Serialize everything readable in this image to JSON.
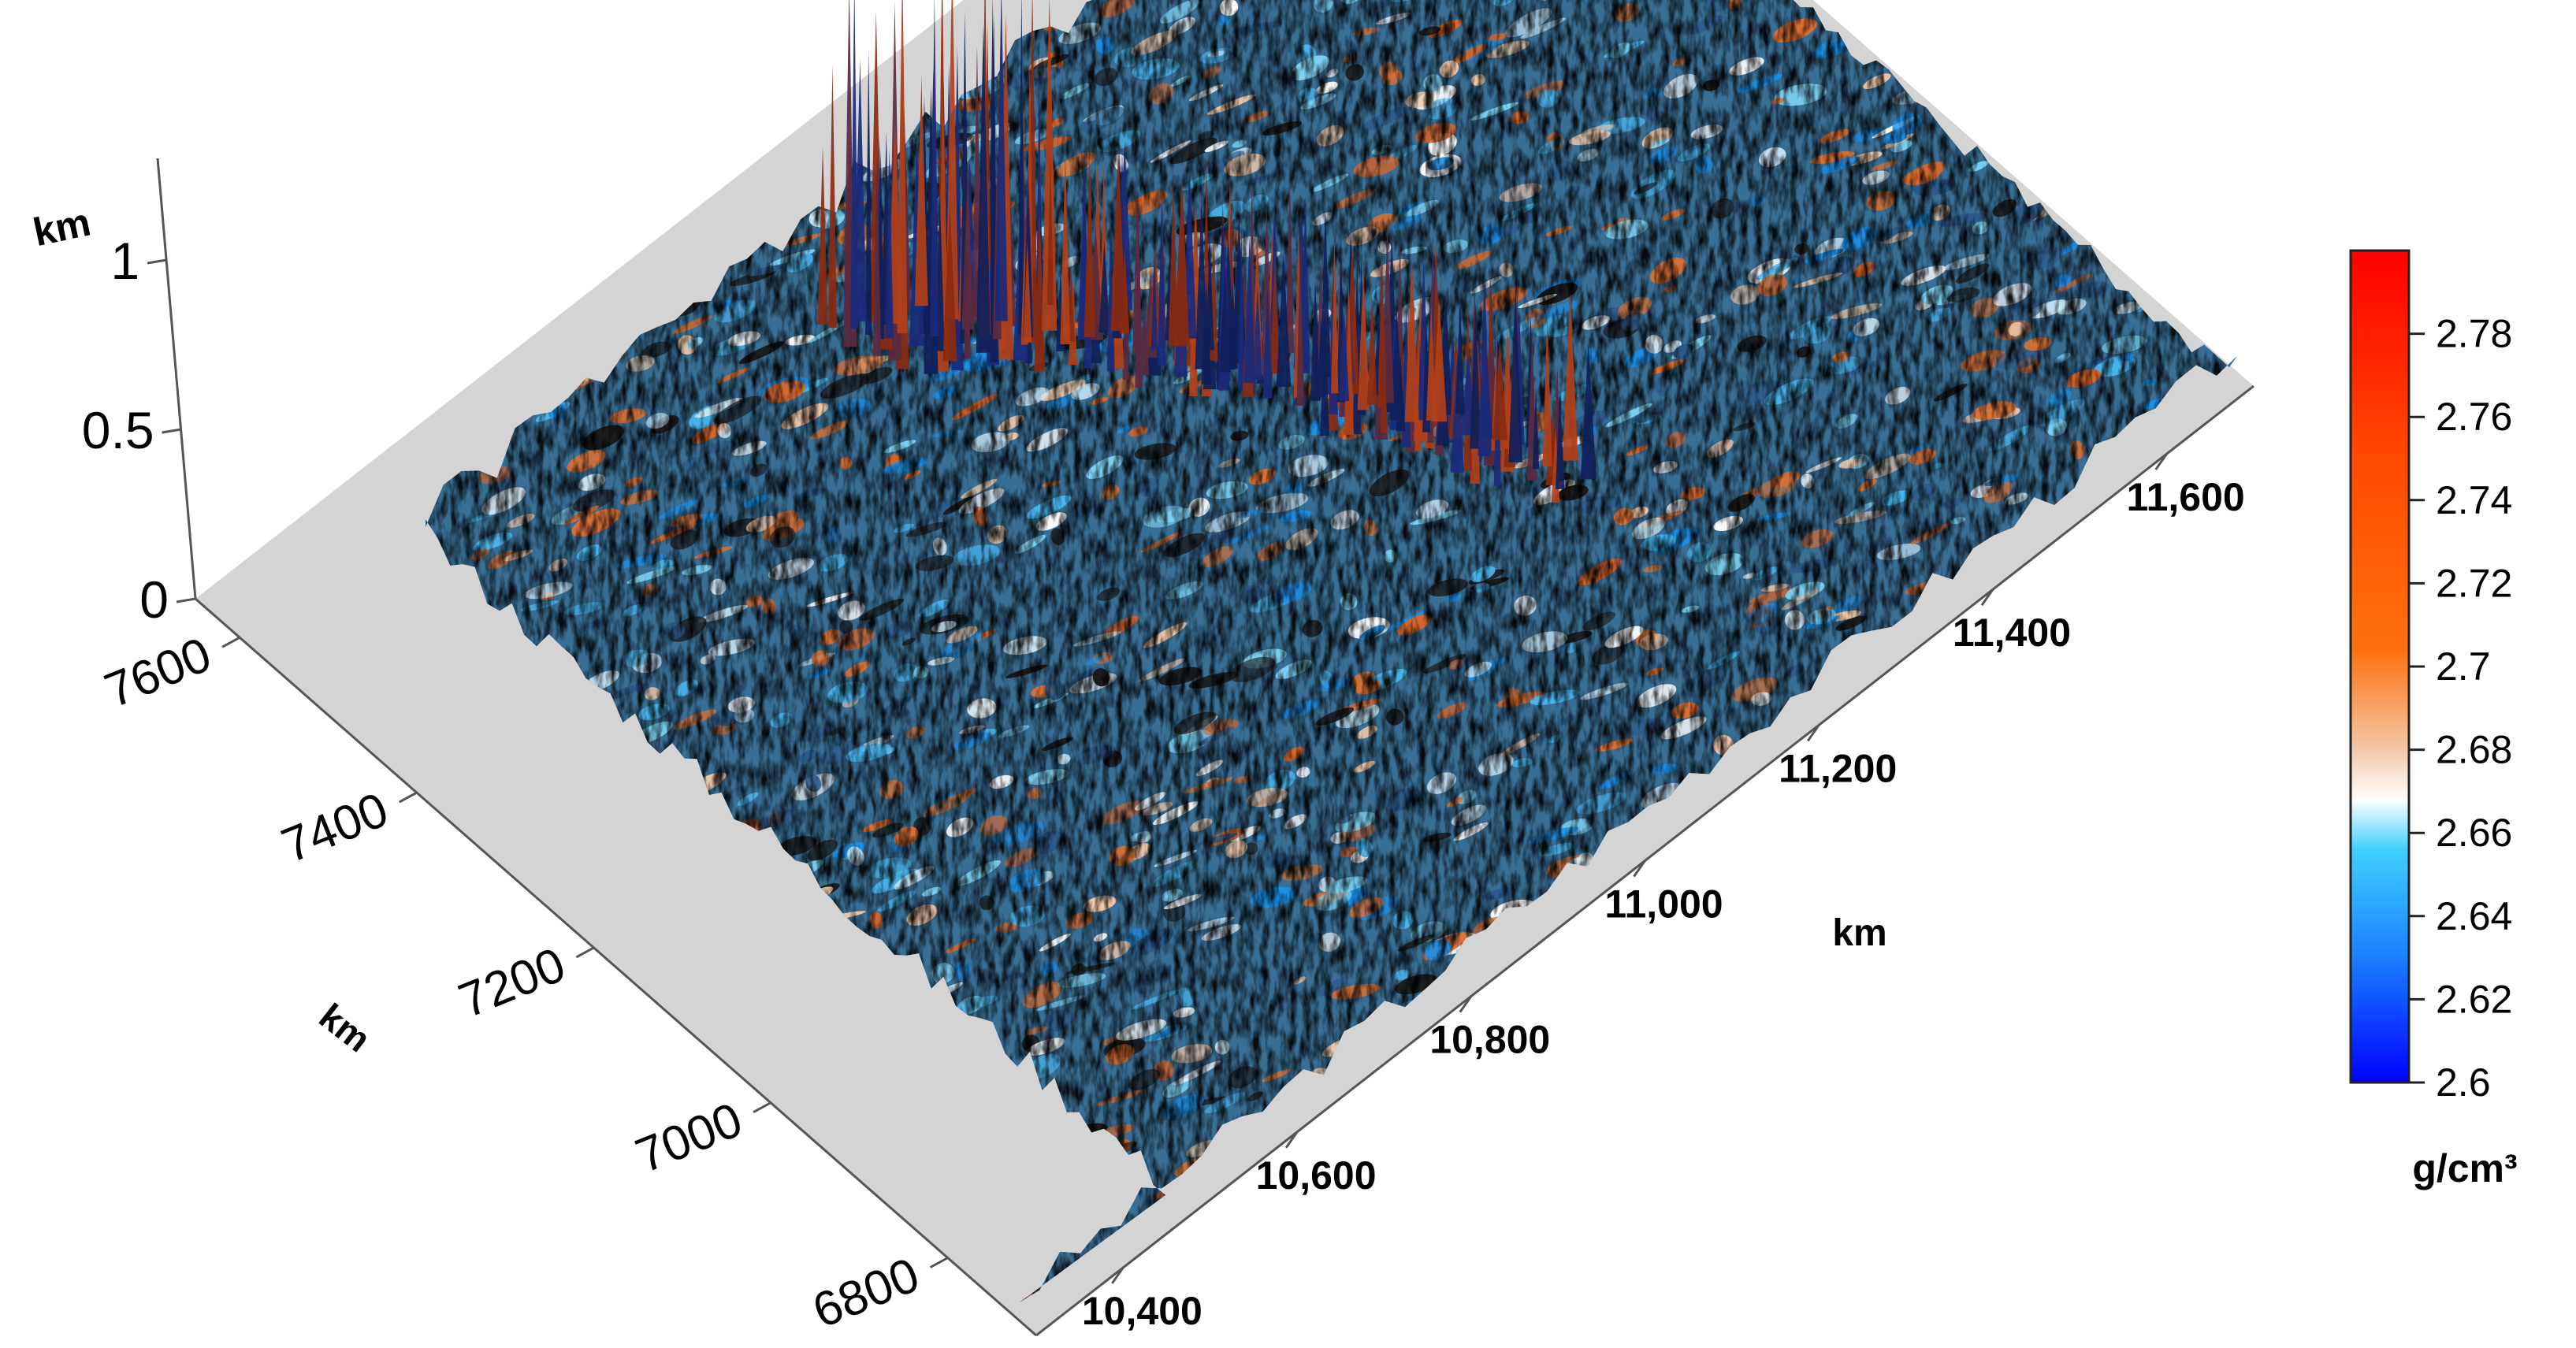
{
  "chart_data": {
    "type": "surface3d",
    "title": "",
    "x_axis": {
      "label": "km",
      "ticks": [
        6800,
        7000,
        7200,
        7400,
        7600
      ],
      "tick_labels": [
        "6800",
        "7000",
        "7200",
        "7400",
        "7600"
      ],
      "range": [
        6700,
        7650
      ]
    },
    "y_axis": {
      "label": "km",
      "ticks": [
        10400,
        10600,
        10800,
        11000,
        11200,
        11400,
        11600
      ],
      "tick_labels": [
        "10,400",
        "10,600",
        "10,800",
        "11,000",
        "11,200",
        "11,400",
        "11,600"
      ],
      "range": [
        10300,
        11700
      ]
    },
    "z_axis": {
      "label": "km",
      "ticks": [
        0,
        0.5,
        1
      ],
      "tick_labels": [
        "0",
        "0.5",
        "1"
      ],
      "range": [
        0,
        1.3
      ]
    },
    "colorbar": {
      "label": "g/cm³",
      "ticks": [
        2.6,
        2.62,
        2.64,
        2.66,
        2.68,
        2.7,
        2.72,
        2.74,
        2.76,
        2.78
      ],
      "tick_labels": [
        "2.6",
        "2.62",
        "2.64",
        "2.66",
        "2.68",
        "2.7",
        "2.72",
        "2.74",
        "2.76",
        "2.78"
      ],
      "range": [
        2.6,
        2.8
      ],
      "colors": [
        "#0000ff",
        "#1a8fff",
        "#3fd0ff",
        "#ffffff",
        "#f0c8a8",
        "#ff7010",
        "#ff4a00",
        "#ff0000"
      ]
    },
    "grid": false
  }
}
